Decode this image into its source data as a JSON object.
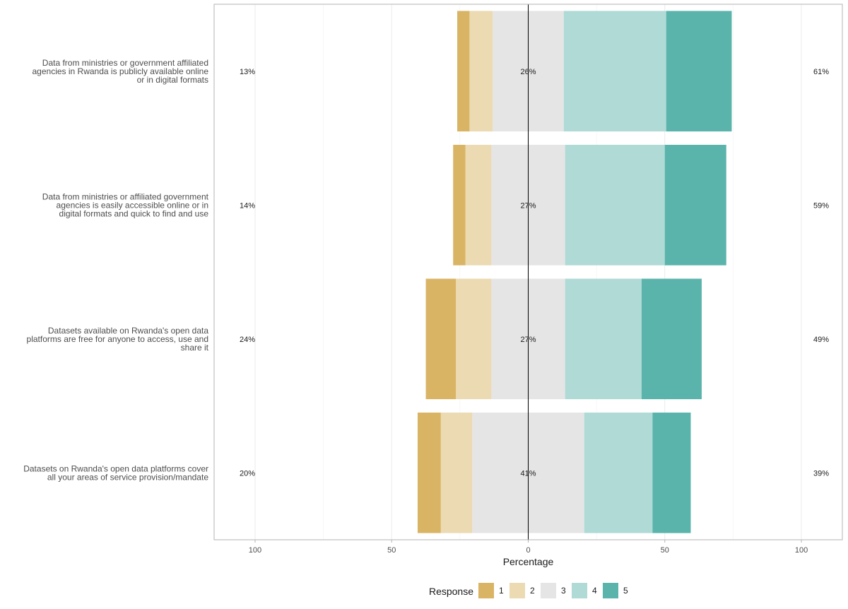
{
  "chart_data": {
    "type": "bar",
    "subtype": "diverging-stacked-likert",
    "orientation": "horizontal",
    "xlabel": "Percentage",
    "xlim": [
      -115,
      115
    ],
    "x_ticks": [
      -100,
      -50,
      0,
      50,
      100
    ],
    "x_tick_labels": [
      "100",
      "50",
      "0",
      "50",
      "100"
    ],
    "legend": {
      "title": "Response",
      "position": "bottom",
      "entries": [
        {
          "label": "1",
          "color": "#DAB465"
        },
        {
          "label": "2",
          "color": "#EBDAB2"
        },
        {
          "label": "3",
          "color": "#E5E5E5"
        },
        {
          "label": "4",
          "color": "#AFDAD6"
        },
        {
          "label": "5",
          "color": "#5AB4AC"
        }
      ]
    },
    "series": [
      {
        "name": "1",
        "values": [
          4.5,
          4.5,
          11,
          8.5
        ]
      },
      {
        "name": "2",
        "values": [
          8.5,
          9.5,
          13,
          11.5
        ]
      },
      {
        "name": "3",
        "values": [
          26,
          27,
          27,
          41
        ]
      },
      {
        "name": "4",
        "values": [
          37.5,
          36.5,
          28,
          25
        ]
      },
      {
        "name": "5",
        "values": [
          24,
          22.5,
          22,
          14
        ]
      }
    ],
    "categories": [
      {
        "lines": [
          "Data from ministries or government affiliated",
          "agencies in Rwanda is publicly available online",
          "or in digital formats"
        ]
      },
      {
        "lines": [
          "Data from ministries or affiliated government",
          "agencies is easily accessible online or in",
          "digital formats and quick to find and use"
        ]
      },
      {
        "lines": [
          "Datasets available on Rwanda's open data",
          "platforms are free for anyone to access, use and",
          "share it"
        ]
      },
      {
        "lines": [
          "Datasets on Rwanda's open data platforms cover",
          "all your areas of service provision/mandate"
        ]
      }
    ],
    "left_labels": [
      "13%",
      "14%",
      "24%",
      "20%"
    ],
    "center_labels": [
      "26%",
      "27%",
      "27%",
      "41%"
    ],
    "right_labels": [
      "61%",
      "59%",
      "49%",
      "39%"
    ]
  }
}
